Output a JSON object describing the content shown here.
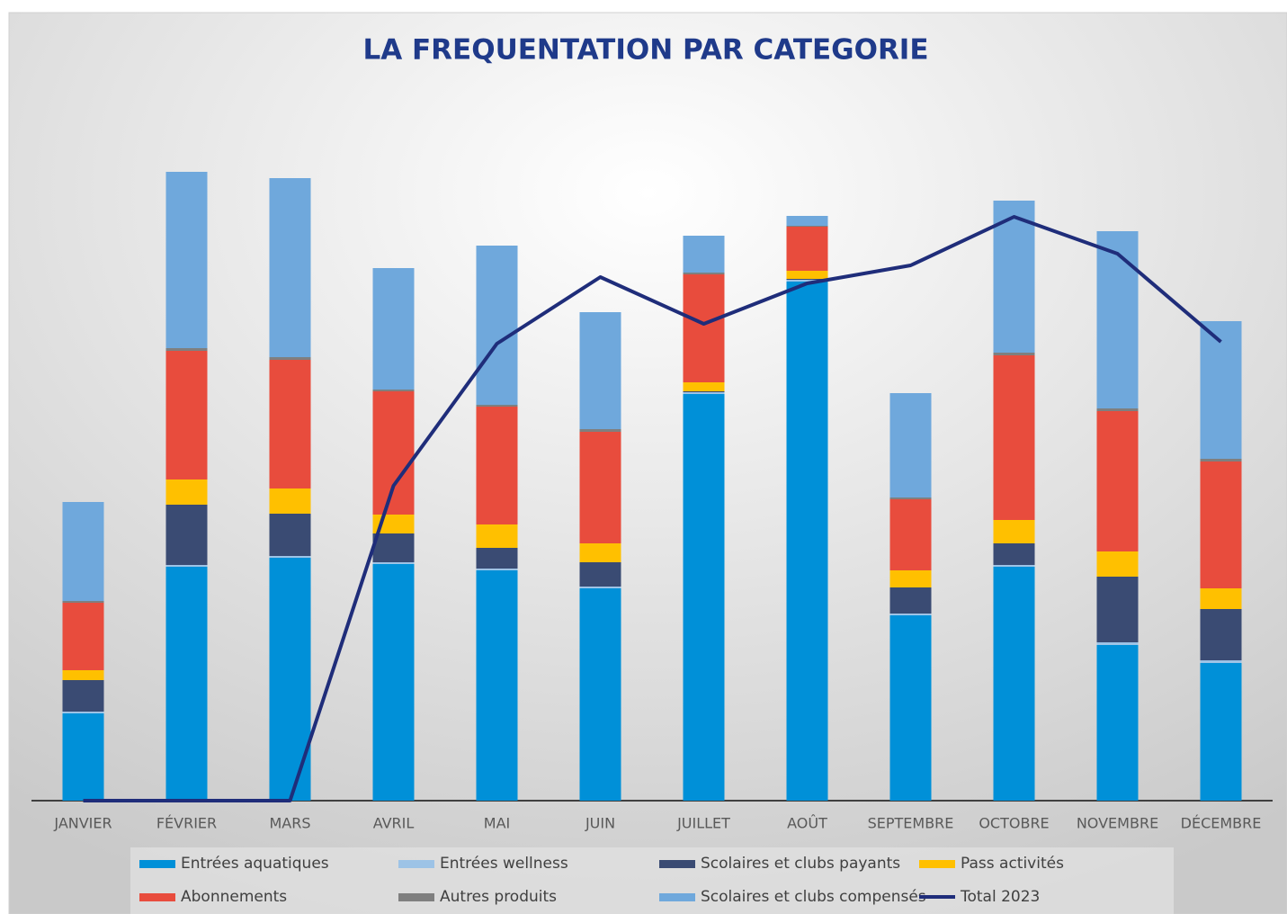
{
  "chart_data": {
    "type": "bar",
    "stacked": true,
    "title": "LA FREQUENTATION PAR CATEGORIE",
    "categories": [
      "JANVIER",
      "FÉVRIER",
      "MARS",
      "AVRIL",
      "MAI",
      "JUIN",
      "JUILLET",
      "AOÛT",
      "SEPTEMBRE",
      "OCTOBRE",
      "NOVEMBRE",
      "DÉCEMBRE"
    ],
    "ylim": [
      0,
      720
    ],
    "series": [
      {
        "name": "Entrées aquatiques",
        "color": "#0090d8",
        "values": [
          97,
          260,
          270,
          263,
          256,
          236,
          452,
          577,
          206,
          260,
          173,
          153
        ]
      },
      {
        "name": "Entrées wellness",
        "color": "#9dc3e6",
        "values": [
          2,
          2,
          2,
          2,
          2,
          2,
          2,
          2,
          2,
          2,
          3,
          3
        ]
      },
      {
        "name": "Scolaires et clubs payants",
        "color": "#3a4b73",
        "values": [
          35,
          67,
          47,
          32,
          23,
          27,
          1,
          1,
          29,
          24,
          73,
          57
        ]
      },
      {
        "name": "Pass activités",
        "color": "#ffc000",
        "values": [
          11,
          28,
          28,
          21,
          26,
          21,
          10,
          9,
          19,
          26,
          28,
          23
        ]
      },
      {
        "name": "Abonnements",
        "color": "#e84c3d",
        "values": [
          75,
          143,
          143,
          137,
          131,
          124,
          120,
          49,
          79,
          183,
          156,
          141
        ]
      },
      {
        "name": "Autres produits",
        "color": "#7f7f7f",
        "values": [
          2,
          3,
          3,
          2,
          2,
          3,
          2,
          1,
          2,
          3,
          3,
          3
        ]
      },
      {
        "name": "Scolaires et clubs compensés",
        "color": "#6fa8dc",
        "values": [
          110,
          196,
          199,
          135,
          177,
          130,
          41,
          11,
          116,
          169,
          197,
          153
        ]
      }
    ],
    "line_series": {
      "name": "Total 2023",
      "color": "#1f2d7a",
      "values": [
        0,
        0,
        0,
        350,
        508,
        582,
        530,
        575,
        595,
        649,
        608,
        510
      ]
    }
  }
}
